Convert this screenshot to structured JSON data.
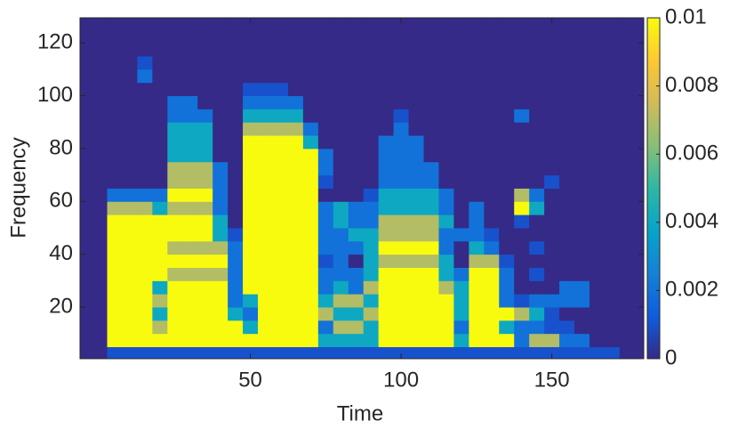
{
  "chart_data": {
    "type": "heatmap",
    "xlabel": "Time",
    "ylabel": "Frequency",
    "xlim": [
      -6.5,
      180.5
    ],
    "ylim": [
      0.5,
      129.5
    ],
    "xticks": [
      50,
      100,
      150
    ],
    "yticks": [
      20,
      40,
      60,
      80,
      100,
      120
    ],
    "clim": [
      0,
      0.01
    ],
    "cticks": [
      0,
      0.002,
      0.004,
      0.006,
      0.008,
      0.01
    ],
    "colormap": [
      "#352a87",
      "#0f5cdd",
      "#1481d6",
      "#06a4ca",
      "#2eb7a4",
      "#87bf77",
      "#d1bb59",
      "#fec832",
      "#f9fb0e"
    ],
    "x": [
      0,
      5,
      10,
      15,
      20,
      25,
      30,
      35,
      40,
      45,
      50,
      55,
      60,
      65,
      70,
      75,
      80,
      85,
      90,
      95,
      100,
      105,
      110,
      115,
      120,
      125,
      130,
      135,
      140,
      145,
      150,
      155,
      160,
      165,
      170,
      175
    ],
    "y": [
      2.5,
      7.5,
      12.5,
      17.5,
      22.5,
      27.5,
      32.5,
      37.5,
      42.5,
      47.5,
      52.5,
      57.5,
      62.5,
      67.5,
      72.5,
      77.5,
      82.5,
      87.5,
      92.5,
      97.5,
      102.5,
      107.5,
      112.5,
      117.5,
      122.5,
      127.5
    ],
    "z": [
      [
        0,
        0.001,
        0.001,
        0.001,
        0.001,
        0.001,
        0.001,
        0.001,
        0.001,
        0.001,
        0.001,
        0.001,
        0.001,
        0.001,
        0.001,
        0.001,
        0.001,
        0.001,
        0.001,
        0.001,
        0.001,
        0.001,
        0.001,
        0.001,
        0.001,
        0.001,
        0.001,
        0.001,
        0.001,
        0.001,
        0.001,
        0.001,
        0.001,
        0.001,
        0.001,
        0
      ],
      [
        0,
        0.01,
        0.01,
        0.01,
        0.01,
        0.01,
        0.01,
        0.01,
        0.01,
        0.01,
        0.01,
        0.01,
        0.01,
        0.01,
        0.01,
        0.004,
        0.004,
        0.004,
        0.004,
        0.01,
        0.01,
        0.01,
        0.01,
        0.01,
        0.004,
        0.01,
        0.01,
        0.01,
        0.002,
        0.007,
        0.007,
        0.002,
        0.002,
        0,
        0,
        0
      ],
      [
        0,
        0.01,
        0.01,
        0.01,
        0.007,
        0.01,
        0.01,
        0.01,
        0.01,
        0.01,
        0.004,
        0.01,
        0.01,
        0.01,
        0.01,
        0.002,
        0.007,
        0.007,
        0.004,
        0.01,
        0.01,
        0.01,
        0.01,
        0.01,
        0.002,
        0.01,
        0.01,
        0.004,
        0.002,
        0.002,
        0.001,
        0.001,
        0,
        0,
        0,
        0
      ],
      [
        0,
        0.01,
        0.01,
        0.01,
        0.004,
        0.01,
        0.01,
        0.01,
        0.01,
        0.004,
        0.002,
        0.01,
        0.01,
        0.01,
        0.01,
        0.007,
        0.004,
        0.004,
        0.007,
        0.01,
        0.01,
        0.01,
        0.01,
        0.01,
        0.004,
        0.01,
        0.01,
        0.01,
        0.007,
        0.004,
        0.001,
        0,
        0,
        0,
        0,
        0
      ],
      [
        0,
        0.01,
        0.01,
        0.01,
        0.007,
        0.01,
        0.01,
        0.01,
        0.01,
        0.002,
        0.004,
        0.01,
        0.01,
        0.01,
        0.01,
        0.004,
        0.007,
        0.007,
        0.004,
        0.01,
        0.01,
        0.01,
        0.01,
        0.01,
        0.004,
        0.01,
        0.01,
        0.002,
        0.001,
        0.002,
        0.002,
        0.002,
        0.002,
        0,
        0,
        0
      ],
      [
        0,
        0.01,
        0.01,
        0.01,
        0.004,
        0.01,
        0.01,
        0.01,
        0.01,
        0.002,
        0.01,
        0.01,
        0.01,
        0.01,
        0.01,
        0.002,
        0.004,
        0.002,
        0.007,
        0.01,
        0.01,
        0.01,
        0.01,
        0.007,
        0.004,
        0.01,
        0.01,
        0.002,
        0,
        0,
        0,
        0.002,
        0.002,
        0,
        0,
        0
      ],
      [
        0,
        0.01,
        0.01,
        0.01,
        0.01,
        0.007,
        0.007,
        0.007,
        0.007,
        0.002,
        0.01,
        0.01,
        0.01,
        0.01,
        0.01,
        0.002,
        0.002,
        0.002,
        0.004,
        0.01,
        0.01,
        0.01,
        0.01,
        0.004,
        0.002,
        0.01,
        0.01,
        0.002,
        0,
        0.001,
        0,
        0,
        0,
        0,
        0,
        0
      ],
      [
        0,
        0.01,
        0.01,
        0.01,
        0.01,
        0.01,
        0.01,
        0.01,
        0.01,
        0.002,
        0.01,
        0.01,
        0.01,
        0.01,
        0.01,
        0.001,
        0.002,
        0,
        0.004,
        0.007,
        0.007,
        0.007,
        0.007,
        0.004,
        0,
        0.007,
        0.007,
        0.001,
        0,
        0,
        0,
        0,
        0,
        0,
        0,
        0
      ],
      [
        0,
        0.01,
        0.01,
        0.01,
        0.01,
        0.007,
        0.007,
        0.007,
        0.007,
        0.002,
        0.01,
        0.01,
        0.01,
        0.01,
        0.01,
        0.002,
        0.002,
        0.002,
        0.004,
        0.01,
        0.01,
        0.01,
        0.01,
        0.002,
        0,
        0.004,
        0.002,
        0,
        0,
        0.001,
        0,
        0,
        0,
        0,
        0,
        0
      ],
      [
        0,
        0.01,
        0.01,
        0.01,
        0.01,
        0.01,
        0.01,
        0.01,
        0.004,
        0.001,
        0.01,
        0.01,
        0.01,
        0.01,
        0.01,
        0.002,
        0.002,
        0.004,
        0.004,
        0.007,
        0.007,
        0.007,
        0.007,
        0.002,
        0.002,
        0.002,
        0.001,
        0,
        0,
        0,
        0,
        0,
        0,
        0,
        0,
        0
      ],
      [
        0,
        0.01,
        0.01,
        0.01,
        0.01,
        0.01,
        0.01,
        0.01,
        0.004,
        0,
        0.01,
        0.01,
        0.01,
        0.01,
        0.01,
        0.002,
        0.004,
        0.002,
        0.002,
        0.007,
        0.007,
        0.007,
        0.007,
        0.004,
        0,
        0.002,
        0,
        0,
        0.001,
        0,
        0,
        0,
        0,
        0,
        0,
        0
      ],
      [
        0,
        0.007,
        0.007,
        0.007,
        0.004,
        0.007,
        0.007,
        0.007,
        0.002,
        0,
        0.01,
        0.01,
        0.01,
        0.01,
        0.01,
        0.002,
        0.004,
        0.002,
        0.002,
        0.004,
        0.004,
        0.004,
        0.004,
        0.002,
        0,
        0.002,
        0,
        0,
        0.01,
        0.004,
        0,
        0,
        0,
        0,
        0,
        0
      ],
      [
        0,
        0.002,
        0.002,
        0.002,
        0.002,
        0.01,
        0.01,
        0.01,
        0.002,
        0,
        0.01,
        0.01,
        0.01,
        0.01,
        0.01,
        0,
        0,
        0,
        0.001,
        0.004,
        0.004,
        0.004,
        0.004,
        0.002,
        0,
        0,
        0,
        0,
        0.007,
        0.002,
        0,
        0,
        0,
        0,
        0,
        0
      ],
      [
        0,
        0,
        0,
        0,
        0,
        0.007,
        0.007,
        0.007,
        0.002,
        0,
        0.01,
        0.01,
        0.01,
        0.01,
        0.01,
        0.001,
        0,
        0,
        0,
        0.002,
        0.002,
        0.002,
        0.002,
        0,
        0,
        0,
        0,
        0,
        0,
        0,
        0.001,
        0,
        0,
        0,
        0,
        0
      ],
      [
        0,
        0,
        0,
        0,
        0,
        0.007,
        0.007,
        0.007,
        0.002,
        0,
        0.01,
        0.01,
        0.01,
        0.01,
        0.01,
        0.002,
        0,
        0,
        0,
        0.002,
        0.002,
        0.002,
        0.002,
        0,
        0,
        0,
        0,
        0,
        0,
        0,
        0,
        0,
        0,
        0,
        0,
        0
      ],
      [
        0,
        0,
        0,
        0,
        0,
        0.004,
        0.004,
        0.004,
        0,
        0,
        0.01,
        0.01,
        0.01,
        0.01,
        0.01,
        0.002,
        0,
        0,
        0,
        0.002,
        0.002,
        0.002,
        0,
        0,
        0,
        0,
        0,
        0,
        0,
        0,
        0,
        0,
        0,
        0,
        0,
        0
      ],
      [
        0,
        0,
        0,
        0,
        0,
        0.004,
        0.004,
        0.004,
        0,
        0,
        0.01,
        0.01,
        0.01,
        0.01,
        0.004,
        0,
        0,
        0,
        0,
        0.002,
        0.002,
        0.002,
        0,
        0,
        0,
        0,
        0,
        0,
        0,
        0,
        0,
        0,
        0,
        0,
        0,
        0
      ],
      [
        0,
        0,
        0,
        0,
        0,
        0.004,
        0.004,
        0.004,
        0,
        0,
        0.007,
        0.007,
        0.007,
        0.007,
        0.002,
        0,
        0,
        0,
        0,
        0,
        0.002,
        0,
        0,
        0,
        0,
        0,
        0,
        0,
        0,
        0,
        0,
        0,
        0,
        0,
        0,
        0
      ],
      [
        0,
        0,
        0,
        0,
        0,
        0.002,
        0.002,
        0.002,
        0,
        0,
        0.004,
        0.004,
        0.004,
        0.004,
        0,
        0,
        0,
        0,
        0,
        0,
        0.001,
        0,
        0,
        0,
        0,
        0,
        0,
        0,
        0.002,
        0,
        0,
        0,
        0,
        0,
        0,
        0
      ],
      [
        0,
        0,
        0,
        0,
        0,
        0.002,
        0.002,
        0,
        0,
        0,
        0.002,
        0.002,
        0.002,
        0.002,
        0,
        0,
        0,
        0,
        0,
        0,
        0,
        0,
        0,
        0,
        0,
        0,
        0,
        0,
        0,
        0,
        0,
        0,
        0,
        0,
        0,
        0
      ],
      [
        0,
        0,
        0,
        0,
        0,
        0,
        0,
        0,
        0,
        0,
        0.001,
        0.001,
        0.001,
        0,
        0,
        0,
        0,
        0,
        0,
        0,
        0,
        0,
        0,
        0,
        0,
        0,
        0,
        0,
        0,
        0,
        0,
        0,
        0,
        0,
        0,
        0
      ],
      [
        0,
        0,
        0,
        0.002,
        0,
        0,
        0,
        0,
        0,
        0,
        0,
        0,
        0,
        0,
        0,
        0,
        0,
        0,
        0,
        0,
        0,
        0,
        0,
        0,
        0,
        0,
        0,
        0,
        0,
        0,
        0,
        0,
        0,
        0,
        0,
        0
      ],
      [
        0,
        0,
        0,
        0.001,
        0,
        0,
        0,
        0,
        0,
        0,
        0,
        0,
        0,
        0,
        0,
        0,
        0,
        0,
        0,
        0,
        0,
        0,
        0,
        0,
        0,
        0,
        0,
        0,
        0,
        0,
        0,
        0,
        0,
        0,
        0,
        0
      ],
      [
        0,
        0,
        0,
        0,
        0,
        0,
        0,
        0,
        0,
        0,
        0,
        0,
        0,
        0,
        0,
        0,
        0,
        0,
        0,
        0,
        0,
        0,
        0,
        0,
        0,
        0,
        0,
        0,
        0,
        0,
        0,
        0,
        0,
        0,
        0,
        0
      ],
      [
        0,
        0,
        0,
        0,
        0,
        0,
        0,
        0,
        0,
        0,
        0,
        0,
        0,
        0,
        0,
        0,
        0,
        0,
        0,
        0,
        0,
        0,
        0,
        0,
        0,
        0,
        0,
        0,
        0,
        0,
        0,
        0,
        0,
        0,
        0,
        0
      ],
      [
        0,
        0,
        0,
        0,
        0,
        0,
        0,
        0,
        0,
        0,
        0,
        0,
        0,
        0,
        0,
        0,
        0,
        0,
        0,
        0,
        0,
        0,
        0,
        0,
        0,
        0,
        0,
        0,
        0,
        0,
        0,
        0,
        0,
        0,
        0,
        0
      ]
    ]
  }
}
